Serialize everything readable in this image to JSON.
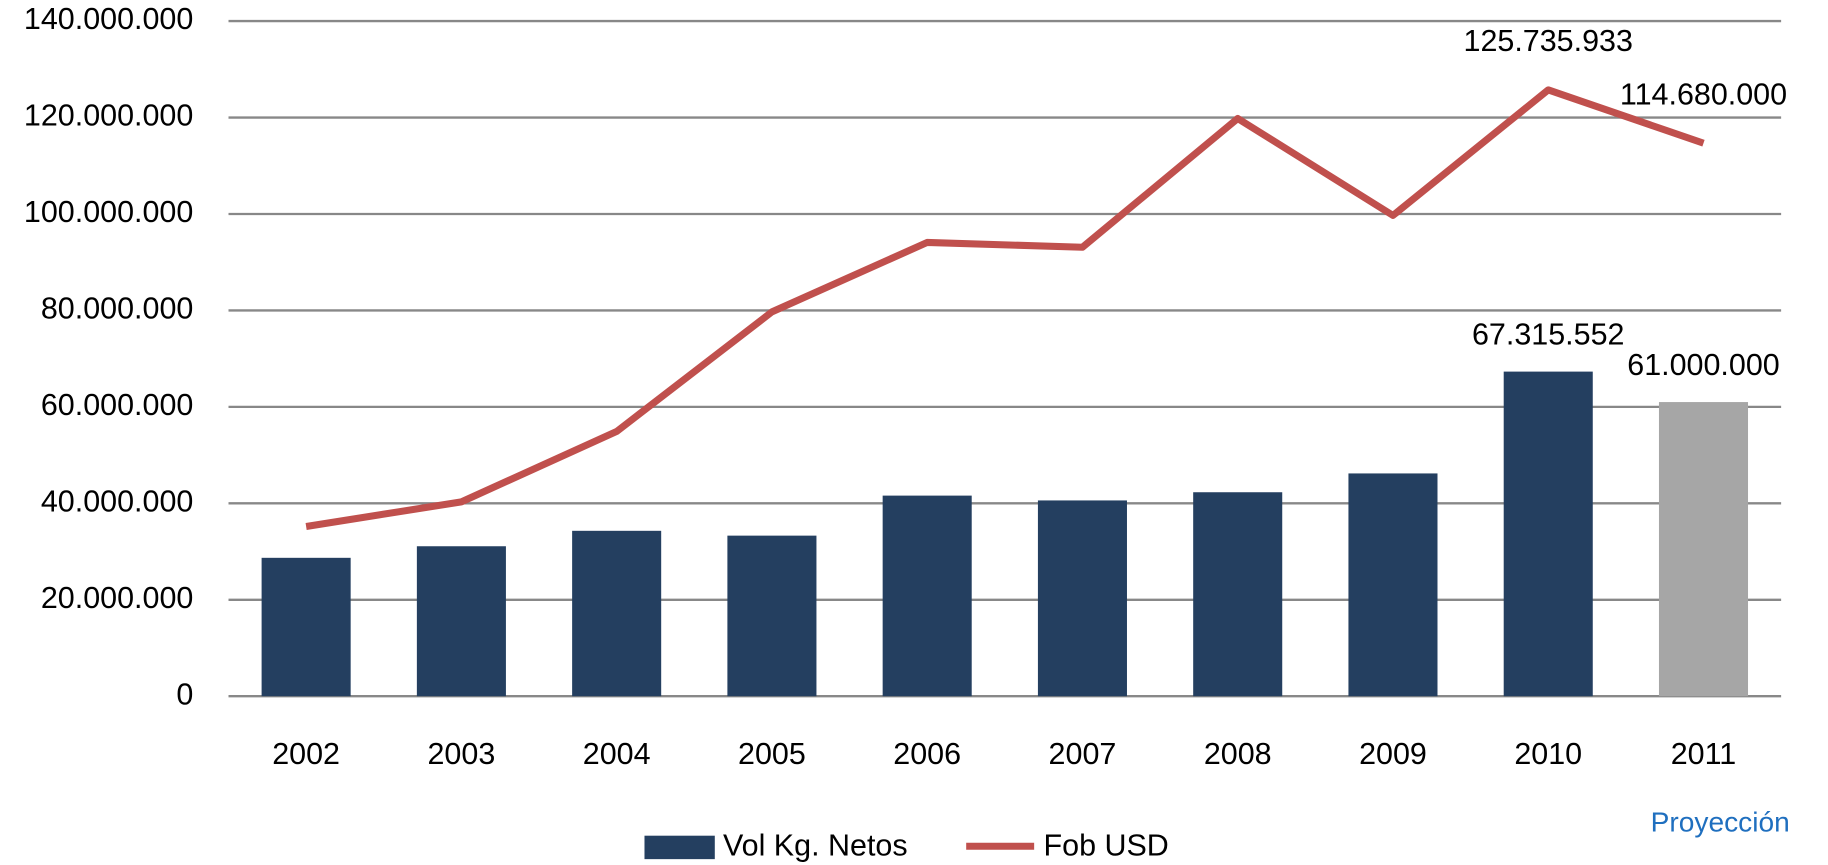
{
  "chart_data": {
    "type": "bar_line",
    "categories": [
      "2002",
      "2003",
      "2004",
      "2005",
      "2006",
      "2007",
      "2008",
      "2009",
      "2010",
      "2011"
    ],
    "series": [
      {
        "name": "Vol Kg. Netos",
        "type": "bar",
        "color": "#243f60",
        "colors": [
          "#243f60",
          "#243f60",
          "#243f60",
          "#243f60",
          "#243f60",
          "#243f60",
          "#243f60",
          "#243f60",
          "#243f60",
          "#a6a6a6"
        ],
        "values": [
          28700000,
          31100000,
          34300000,
          33300000,
          41600000,
          40600000,
          42300000,
          46200000,
          67315552,
          61000000
        ],
        "value_labels": [
          null,
          null,
          null,
          null,
          null,
          null,
          null,
          null,
          "67.315.552",
          "61.000.000"
        ]
      },
      {
        "name": "Fob USD",
        "type": "line",
        "color": "#c0504d",
        "values": [
          35200000,
          40300000,
          54900000,
          79700000,
          94100000,
          93100000,
          119800000,
          99700000,
          125735933,
          114680000
        ],
        "value_labels": [
          null,
          null,
          null,
          null,
          null,
          null,
          null,
          null,
          "125.735.933",
          "114.680.000"
        ]
      }
    ],
    "ylim": [
      0,
      140000000
    ],
    "yticks": [
      0,
      {
        "value": 20000000,
        "label": "20.000.000"
      },
      {
        "value": 40000000,
        "label": "40.000.000"
      },
      {
        "value": 60000000,
        "label": "60.000.000"
      },
      {
        "value": 80000000,
        "label": "80.000.000"
      },
      {
        "value": 100000000,
        "label": "100.000.000"
      },
      {
        "value": 120000000,
        "label": "120.000.000"
      },
      {
        "value": 140000000,
        "label": "140.000.000"
      }
    ],
    "grid": true,
    "legend": "bottom",
    "annotation": "Proyección"
  }
}
